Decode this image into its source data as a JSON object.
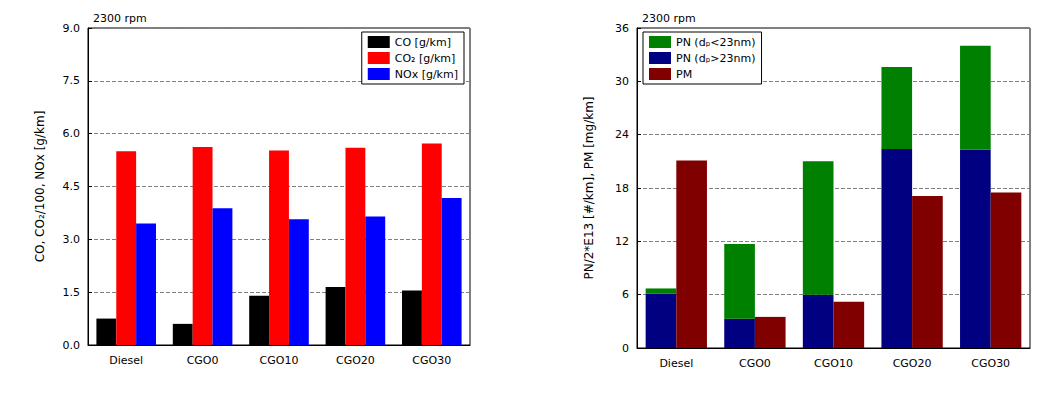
{
  "chart_data": [
    {
      "type": "bar",
      "title": "2300 rpm",
      "y_label": "CO, CO₂/100, NOx [g/km]",
      "categories": [
        "Diesel",
        "CGO0",
        "CGO10",
        "CGO20",
        "CGO30"
      ],
      "series": [
        {
          "name": "CO [g/km]",
          "color": "#000000",
          "values": [
            0.75,
            0.6,
            1.4,
            1.65,
            1.55
          ]
        },
        {
          "name": "CO₂ [g/km]",
          "color": "#ff0000",
          "values": [
            5.5,
            5.62,
            5.52,
            5.6,
            5.72
          ]
        },
        {
          "name": "NOx [g/km]",
          "color": "#0000ff",
          "values": [
            3.45,
            3.88,
            3.57,
            3.65,
            4.17
          ]
        }
      ],
      "ylim": [
        0,
        9
      ],
      "yticks": [
        {
          "value": 0,
          "label": "0.0"
        },
        1.5,
        {
          "value": 3,
          "label": "3.0"
        },
        4.5,
        {
          "value": 6,
          "label": "6.0"
        },
        7.5,
        {
          "value": 9,
          "label": "9.0"
        }
      ],
      "grid": true,
      "legend": "upper right"
    },
    {
      "type": "bar",
      "title": "2300 rpm",
      "y_label": "PN/2*E13 [#/km], PM [mg/km]",
      "categories": [
        "Diesel",
        "CGO0",
        "CGO10",
        "CGO20",
        "CGO30"
      ],
      "series": [
        {
          "name": "PN (dₚ<23nm)",
          "color": "#008000",
          "stacked": true,
          "values": [
            0.6,
            8.4,
            15.0,
            9.2,
            11.7
          ]
        },
        {
          "name": "PN (dₚ>23nm)",
          "color": "#000080",
          "stacked": true,
          "values": [
            6.1,
            3.3,
            6.0,
            22.4,
            22.3
          ]
        },
        {
          "name": "PM",
          "color": "#800000",
          "values": [
            21.1,
            3.5,
            5.2,
            17.1,
            17.5
          ]
        }
      ],
      "ylim": [
        0,
        36
      ],
      "yticks": [
        0,
        6,
        12,
        18,
        24,
        30,
        36
      ],
      "grid": true,
      "legend": "upper left"
    }
  ]
}
